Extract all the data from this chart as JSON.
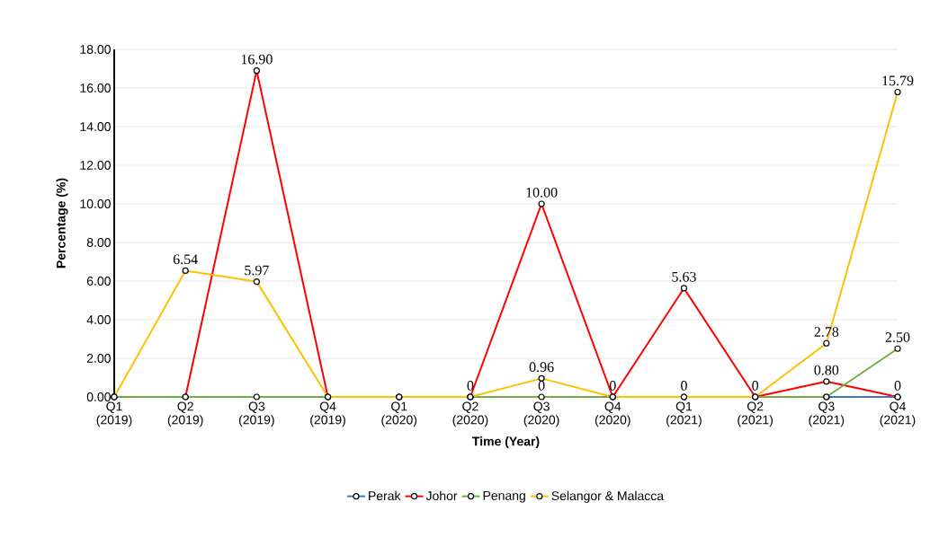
{
  "chart_data": {
    "type": "line",
    "xlabel": "Time (Year)",
    "ylabel": "Percentage (%)",
    "categories": [
      "Q1 (2019)",
      "Q2 (2019)",
      "Q3 (2019)",
      "Q4 (2019)",
      "Q1 (2020)",
      "Q2 (2020)",
      "Q3 (2020)",
      "Q4 (2020)",
      "Q1 (2021)",
      "Q2 (2021)",
      "Q3 (2021)",
      "Q4 (2021)"
    ],
    "ylim": [
      0,
      18
    ],
    "yticks": [
      {
        "value": 0,
        "label": "0.00"
      },
      {
        "value": 2,
        "label": "2.00"
      },
      {
        "value": 4,
        "label": "4.00"
      },
      {
        "value": 6,
        "label": "6.00"
      },
      {
        "value": 8,
        "label": "8.00"
      },
      {
        "value": 10,
        "label": "10.00"
      },
      {
        "value": 12,
        "label": "12.00"
      },
      {
        "value": 14,
        "label": "14.00"
      },
      {
        "value": 16,
        "label": "16.00"
      },
      {
        "value": 18,
        "label": "18.00"
      }
    ],
    "grid": "y",
    "legend": "bottom",
    "marker": "circle",
    "line_style": "solid",
    "series": [
      {
        "name": "Perak",
        "color": "#4472c4",
        "values": [
          null,
          null,
          null,
          null,
          null,
          null,
          null,
          null,
          null,
          null,
          0,
          0
        ]
      },
      {
        "name": "Johor",
        "color": "#ff0000",
        "values": [
          0,
          0,
          16.9,
          0,
          0,
          0,
          10.0,
          0,
          5.63,
          0,
          0.8,
          0
        ],
        "value_labels": [
          null,
          null,
          "16.90",
          null,
          null,
          "0",
          "10.00",
          "0",
          "5.63",
          "0",
          "0.80",
          "0"
        ]
      },
      {
        "name": "Penang",
        "color": "#70ad47",
        "values": [
          0,
          0,
          0,
          0,
          0,
          0,
          0,
          0,
          0,
          0,
          0,
          2.5
        ],
        "value_labels": [
          null,
          null,
          null,
          null,
          null,
          null,
          "0",
          null,
          "0",
          null,
          null,
          "2.50"
        ]
      },
      {
        "name": "Selangor & Malacca",
        "color": "#ffc000",
        "values": [
          0,
          6.54,
          5.97,
          0,
          0,
          0,
          0.96,
          0,
          0,
          0,
          2.78,
          15.79
        ],
        "value_labels": [
          null,
          "6.54",
          "5.97",
          null,
          null,
          null,
          "0.96",
          null,
          null,
          null,
          "2.78",
          "15.79"
        ]
      }
    ]
  }
}
